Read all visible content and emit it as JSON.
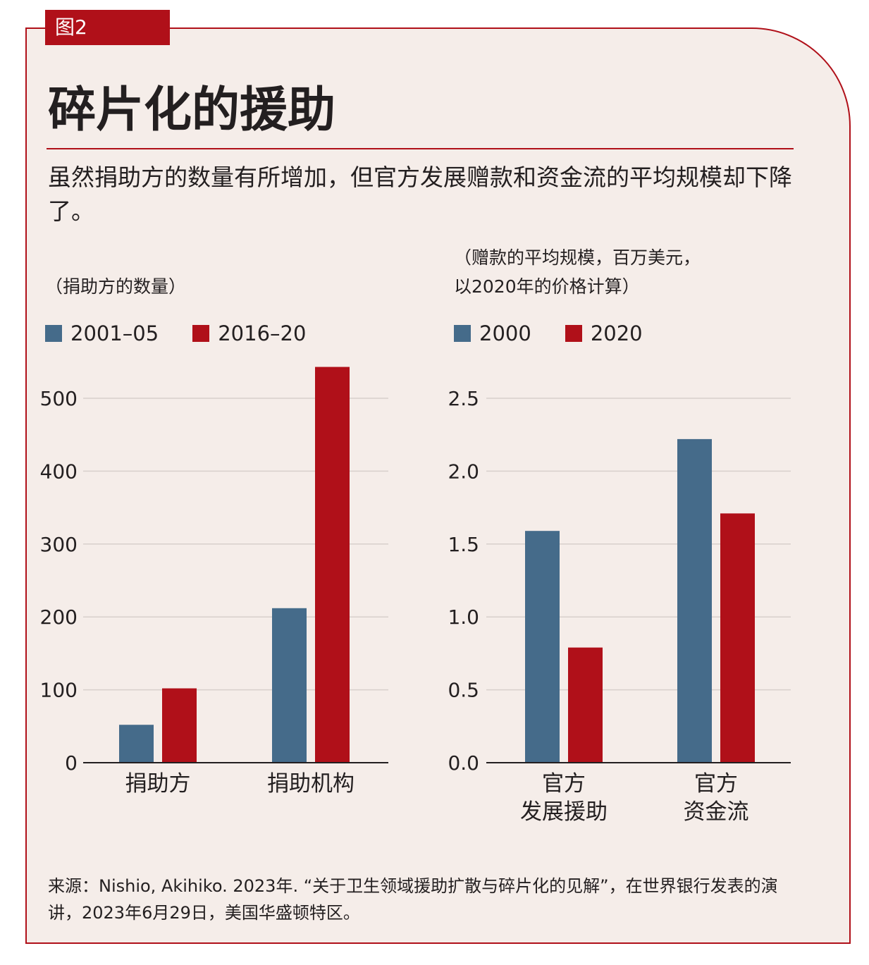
{
  "figure_tag": "图2",
  "title": "碎片化的援助",
  "subtitle": "虽然捐助方的数量有所增加，但官方发展赠款和资金流的平均规模却下降了。",
  "source": "来源：Nishio, Akihiko. 2023年. “关于卫生领域援助扩散与碎片化的见解”，在世界银行发表的演讲，2023年6月29日，美国华盛顿特区。",
  "colors": {
    "blue": "#456b8a",
    "red": "#b01019"
  },
  "chart_data": [
    {
      "type": "bar",
      "ylabel": "（捐助方的数量）",
      "categories": [
        "捐助方",
        "捐助机构"
      ],
      "series": [
        {
          "name": "2001–05",
          "values": [
            52,
            212
          ]
        },
        {
          "name": "2016–20",
          "values": [
            102,
            543
          ]
        }
      ],
      "ylim": [
        0,
        500
      ],
      "yticks": [
        "0",
        "100",
        "200",
        "300",
        "400",
        "500"
      ],
      "ytick_values": [
        0,
        100,
        200,
        300,
        400,
        500
      ],
      "grid": true,
      "legend": "top-left"
    },
    {
      "type": "bar",
      "ylabel_lines": [
        "（赠款的平均规模，百万美元，",
        "以2020年的价格计算）"
      ],
      "categories": [
        "官方\n发展援助",
        "官方\n资金流"
      ],
      "series": [
        {
          "name": "2000",
          "values": [
            1.59,
            2.22
          ]
        },
        {
          "name": "2020",
          "values": [
            0.79,
            1.71
          ]
        }
      ],
      "ylim": [
        0,
        2.5
      ],
      "yticks": [
        "0.0",
        "0.5",
        "1.0",
        "1.5",
        "2.0",
        "2.5"
      ],
      "ytick_values": [
        0,
        0.5,
        1,
        1.5,
        2,
        2.5
      ],
      "grid": true,
      "legend": "top-left"
    }
  ]
}
